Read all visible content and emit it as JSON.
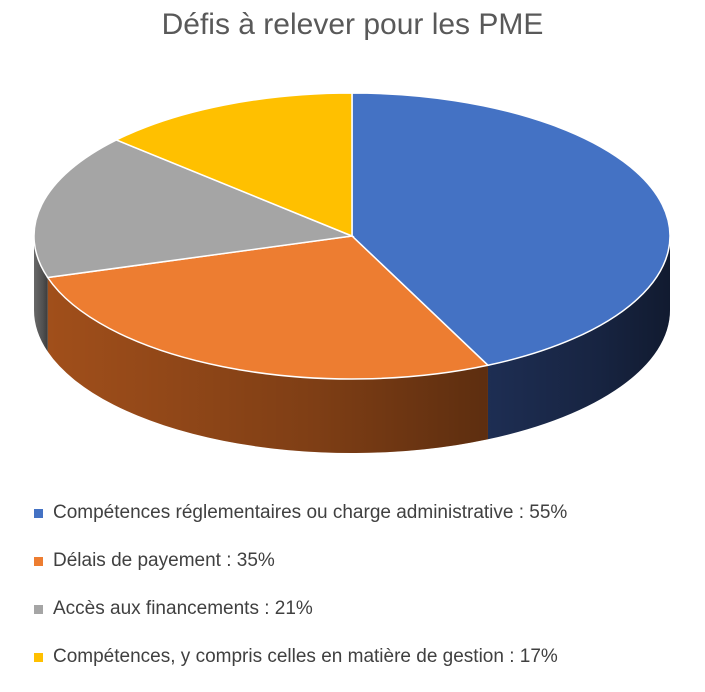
{
  "chart_data": {
    "type": "pie",
    "title": "Défis à relever pour les PME",
    "three_d": true,
    "legend_position": "bottom",
    "slices": [
      {
        "label": "Compétences réglementaires ou charge administrative : 55%",
        "value": 55,
        "color": "#4472C4",
        "side_color": "#1F3057"
      },
      {
        "label": "Délais de payement : 35%",
        "value": 35,
        "color": "#ED7D31",
        "side_color": "#A9531C"
      },
      {
        "label": "Accès aux financements : 21%",
        "value": 21,
        "color": "#A5A5A5",
        "side_color": "#6E6E6E"
      },
      {
        "label": "Compétences, y compris celles en matière de gestion : 17%",
        "value": 17,
        "color": "#FFC000",
        "side_color": "#B58700"
      }
    ]
  }
}
